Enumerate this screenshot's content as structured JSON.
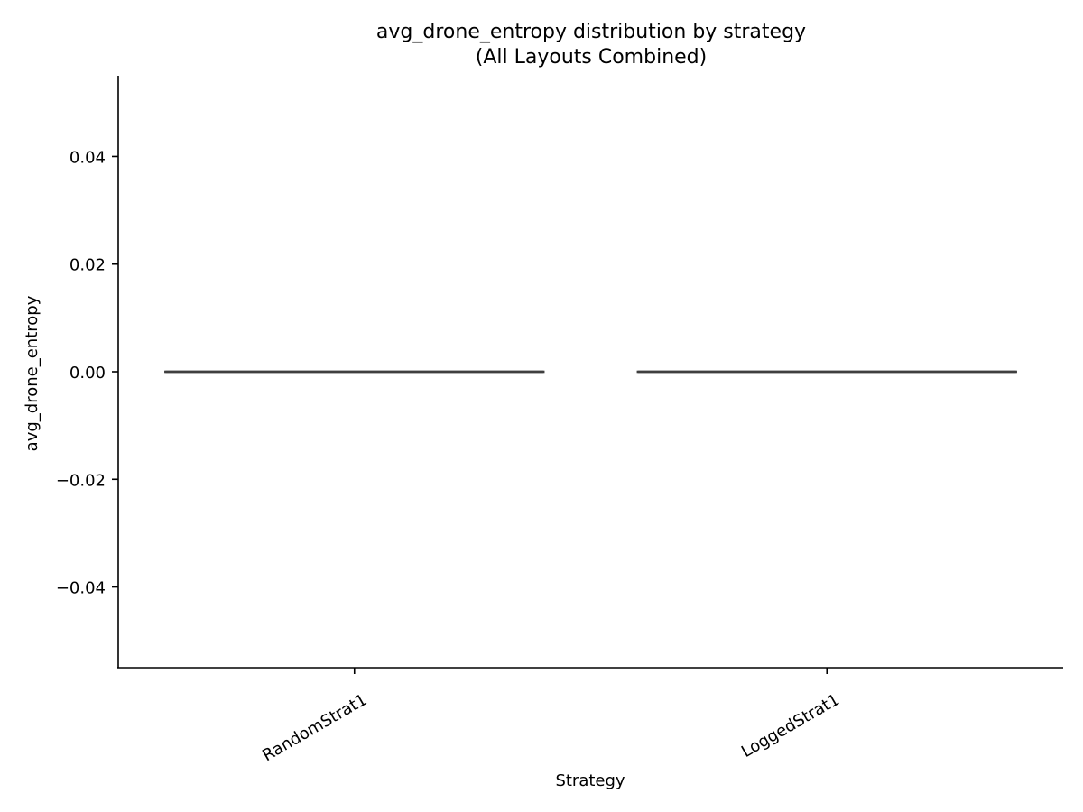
{
  "chart_data": {
    "type": "box",
    "title": "avg_drone_entropy distribution by strategy",
    "subtitle": "(All Layouts Combined)",
    "xlabel": "Strategy",
    "ylabel": "avg_drone_entropy",
    "categories": [
      "RandomStrat1",
      "LoggedStrat1"
    ],
    "series": [
      {
        "values": [
          {
            "category": "RandomStrat1",
            "min": 0.0,
            "q1": 0.0,
            "median": 0.0,
            "q3": 0.0,
            "max": 0.0
          },
          {
            "category": "LoggedStrat1",
            "min": 0.0,
            "q1": 0.0,
            "median": 0.0,
            "q3": 0.0,
            "max": 0.0
          }
        ]
      }
    ],
    "ylim": [
      -0.055,
      0.055
    ],
    "yticks": [
      -0.04,
      -0.02,
      0.0,
      0.02,
      0.04
    ],
    "ytick_labels": [
      "−0.04",
      "−0.02",
      "0.00",
      "0.02",
      "0.04"
    ],
    "grid": false,
    "colors": {
      "axis": "#000000",
      "box_line": "#3f3f3f",
      "background": "#ffffff"
    }
  }
}
